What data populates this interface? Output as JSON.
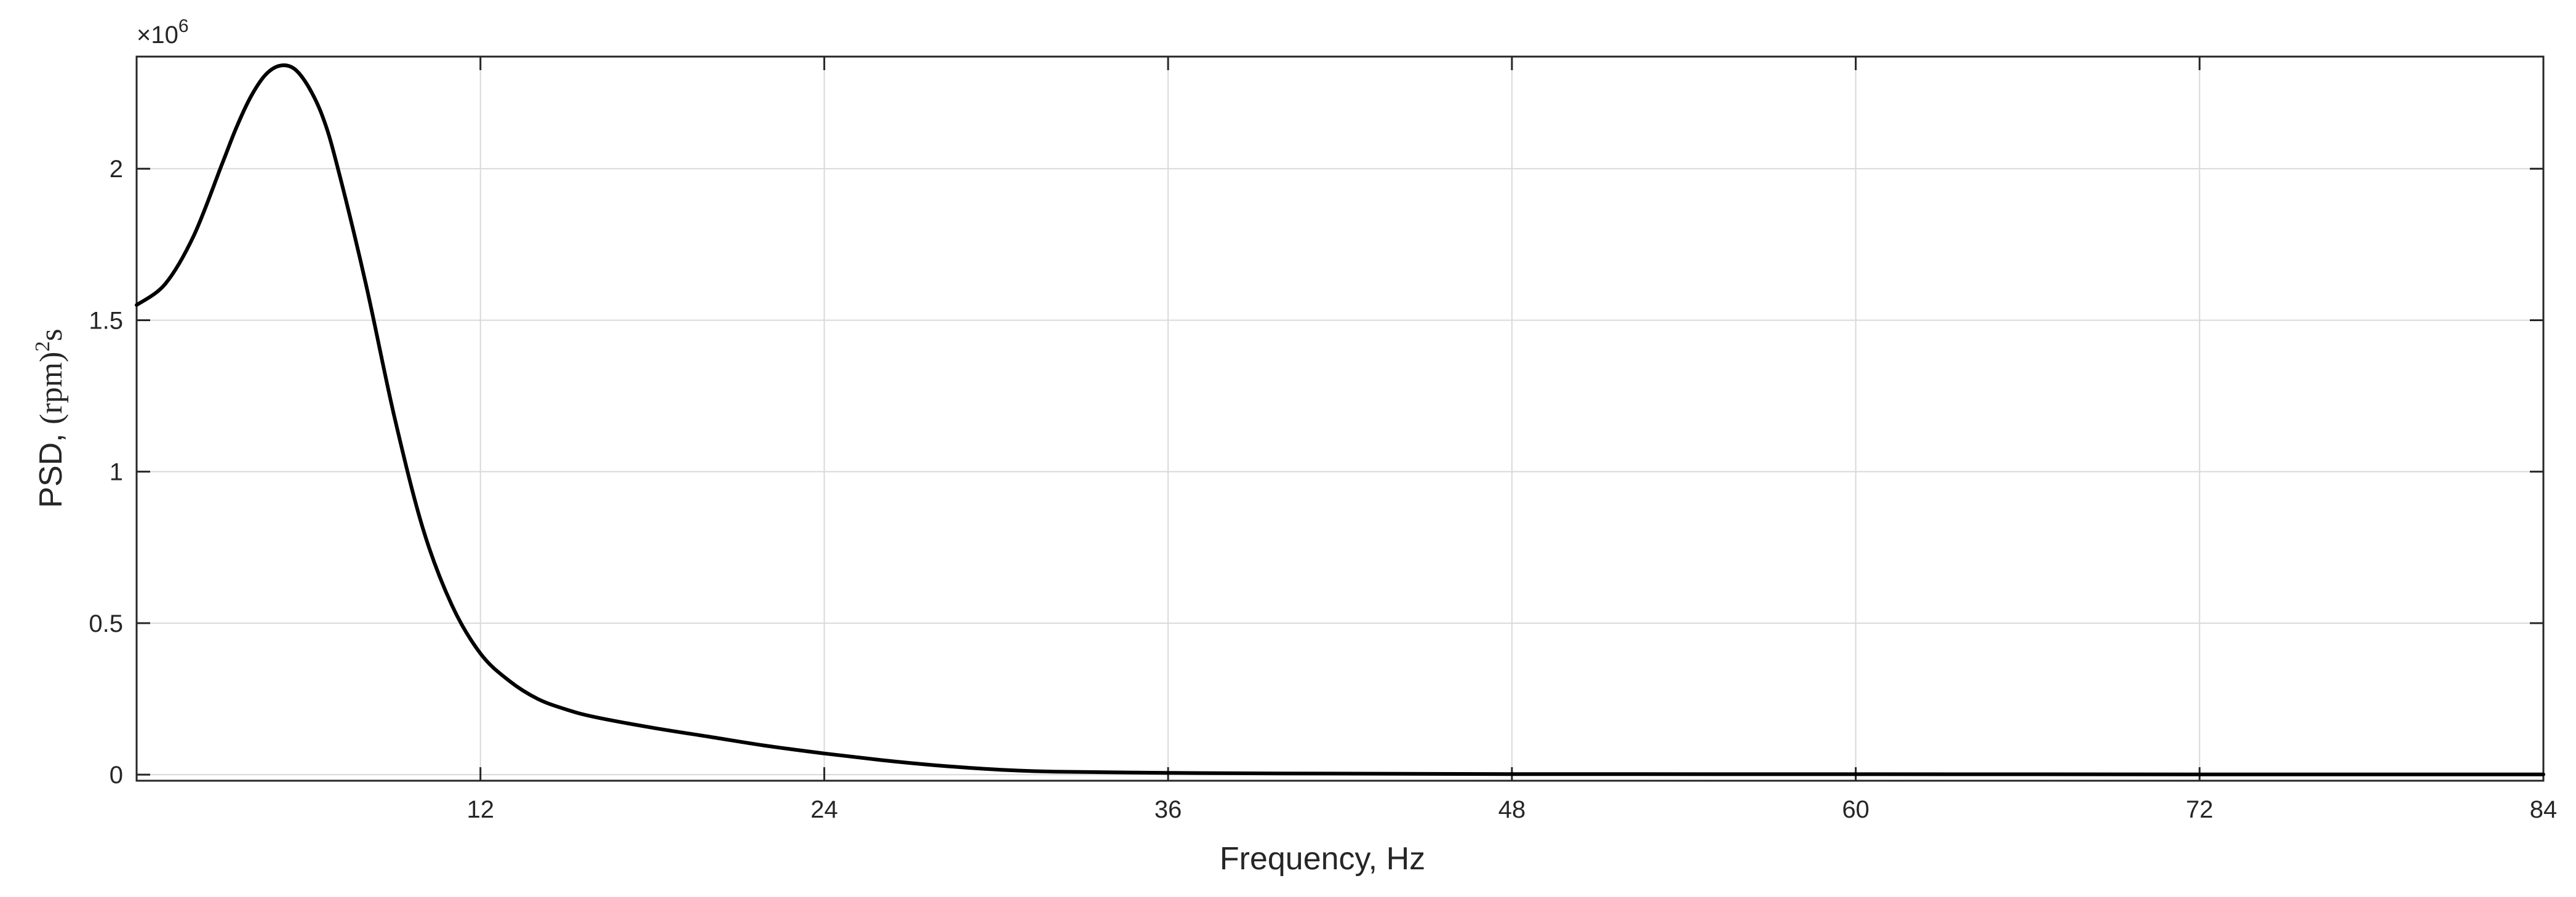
{
  "chart_data": {
    "type": "line",
    "title": "",
    "xlabel": "Frequency, Hz",
    "ylabel": {
      "prefix": "PSD, ",
      "unit_base": "(rpm)",
      "unit_sup": "2",
      "unit_tail": "s"
    },
    "y_exponent": {
      "base": "×10",
      "power": "6"
    },
    "xlim": [
      0,
      84
    ],
    "ylim": [
      -0.02,
      2.37
    ],
    "x_ticks": [
      12,
      24,
      36,
      48,
      60,
      72,
      84
    ],
    "x_tick_labels": [
      "12",
      "24",
      "36",
      "48",
      "60",
      "72",
      "84"
    ],
    "y_ticks": [
      0,
      0.5,
      1,
      1.5,
      2
    ],
    "y_tick_labels": [
      "0",
      "0.5",
      "1",
      "1.5",
      "2"
    ],
    "grid": true,
    "legend": "none",
    "line_color": "#000000",
    "grid_color": "#d9d9d9",
    "series": [
      {
        "x": [
          0,
          1,
          2,
          3,
          3.5,
          4,
          4.5,
          5,
          5.5,
          6,
          6.5,
          7,
          8,
          9,
          10,
          11,
          12,
          13,
          14,
          15,
          16,
          18,
          20,
          22,
          24,
          26,
          28,
          30,
          32,
          36,
          40,
          48,
          60,
          72,
          84
        ],
        "y": [
          1.55,
          1.62,
          1.78,
          2.02,
          2.14,
          2.24,
          2.31,
          2.34,
          2.33,
          2.27,
          2.17,
          2.01,
          1.62,
          1.18,
          0.81,
          0.56,
          0.4,
          0.31,
          0.25,
          0.215,
          0.19,
          0.155,
          0.125,
          0.095,
          0.07,
          0.048,
          0.03,
          0.017,
          0.01,
          0.006,
          0.004,
          0.002,
          0.0015,
          0.001,
          0.001
        ]
      }
    ]
  }
}
